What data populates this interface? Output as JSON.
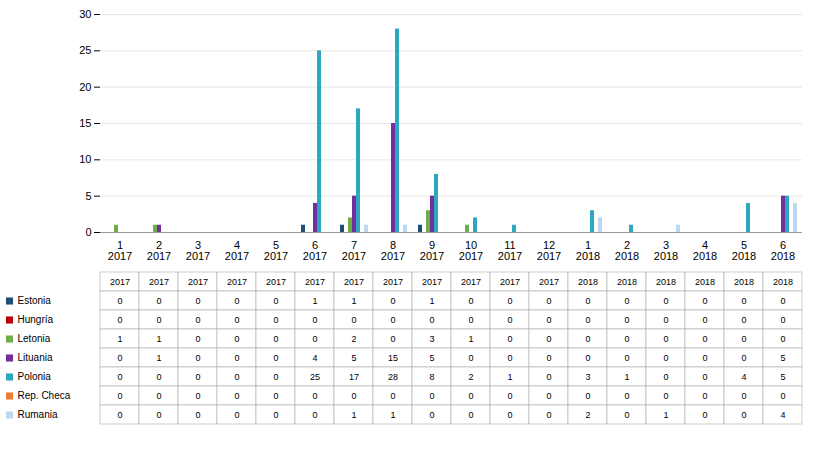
{
  "chart_data": {
    "type": "bar",
    "categories": [
      "1\n2017",
      "2\n2017",
      "3\n2017",
      "4\n2017",
      "5\n2017",
      "6\n2017",
      "7\n2017",
      "8\n2017",
      "9\n2017",
      "10\n2017",
      "11\n2017",
      "12\n2017",
      "1\n2018",
      "2\n2018",
      "3\n2018",
      "4\n2018",
      "5\n2018",
      "6\n2018"
    ],
    "series": [
      {
        "name": "Estonia",
        "color": "#1F4E79",
        "values": [
          0,
          0,
          0,
          0,
          0,
          1,
          1,
          0,
          1,
          0,
          0,
          0,
          0,
          0,
          0,
          0,
          0,
          0
        ]
      },
      {
        "name": "Hungría",
        "color": "#C00000",
        "values": [
          0,
          0,
          0,
          0,
          0,
          0,
          0,
          0,
          0,
          0,
          0,
          0,
          0,
          0,
          0,
          0,
          0,
          0
        ]
      },
      {
        "name": "Letonia",
        "color": "#70AD47",
        "values": [
          1,
          1,
          0,
          0,
          0,
          0,
          2,
          0,
          3,
          1,
          0,
          0,
          0,
          0,
          0,
          0,
          0,
          0
        ]
      },
      {
        "name": "Lituania",
        "color": "#7030A0",
        "values": [
          0,
          1,
          0,
          0,
          0,
          4,
          5,
          15,
          5,
          0,
          0,
          0,
          0,
          0,
          0,
          0,
          0,
          5
        ]
      },
      {
        "name": "Polonia",
        "color": "#2EA8C0",
        "values": [
          0,
          0,
          0,
          0,
          0,
          25,
          17,
          28,
          8,
          2,
          1,
          0,
          3,
          1,
          0,
          0,
          4,
          5
        ]
      },
      {
        "name": "Rep. Checa",
        "color": "#ED7D31",
        "values": [
          0,
          0,
          0,
          0,
          0,
          0,
          0,
          0,
          0,
          0,
          0,
          0,
          0,
          0,
          0,
          0,
          0,
          0
        ]
      },
      {
        "name": "Rumania",
        "color": "#BDD7EE",
        "values": [
          0,
          0,
          0,
          0,
          0,
          0,
          1,
          1,
          0,
          0,
          0,
          0,
          2,
          0,
          1,
          0,
          0,
          4
        ]
      }
    ],
    "ylim": [
      0,
      30
    ],
    "yticks": [
      0,
      5,
      10,
      15,
      20,
      25,
      30
    ],
    "grid": true,
    "legend": "bottom",
    "data_labels": true
  }
}
